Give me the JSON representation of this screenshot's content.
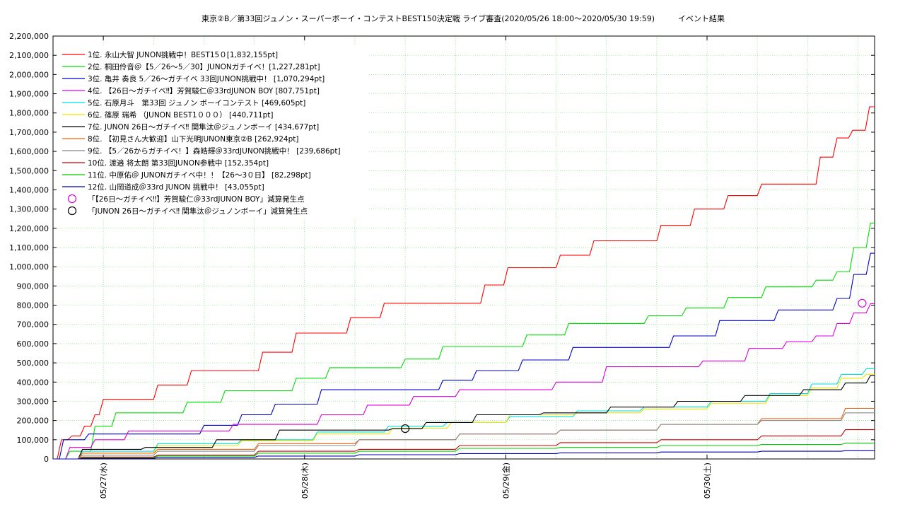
{
  "chart_data": {
    "type": "line",
    "title": "東京②B／第33回ジュノン・スーパーボーイ・コンテストBEST150決定戦 ライブ審査(2020/05/26 18:00〜2020/05/30 19:59)　　　イベント結果",
    "xlabel": "",
    "ylabel": "",
    "x_range": [
      "2020-05-26 18:00",
      "2020-05-30 19:59"
    ],
    "ylim": [
      0,
      2200000
    ],
    "y_ticks": [
      0,
      100000,
      200000,
      300000,
      400000,
      500000,
      600000,
      700000,
      800000,
      900000,
      1000000,
      1100000,
      1200000,
      1300000,
      1400000,
      1500000,
      1600000,
      1700000,
      1800000,
      1900000,
      2000000,
      2100000,
      2200000
    ],
    "y_tick_labels": [
      "0",
      "100,000",
      "200,000",
      "300,000",
      "400,000",
      "500,000",
      "600,000",
      "700,000",
      "800,000",
      "900,000",
      "1,000,000",
      "1,100,000",
      "1,200,000",
      "1,300,000",
      "1,400,000",
      "1,500,000",
      "1,600,000",
      "1,700,000",
      "1,800,000",
      "1,900,000",
      "2,000,000",
      "2,100,000",
      "2,200,000"
    ],
    "x_ticks": [
      "2020-05-27 00:00",
      "2020-05-28 00:00",
      "2020-05-29 00:00",
      "2020-05-30 00:00"
    ],
    "x_tick_labels": [
      "05/27(水)",
      "05/28(木)",
      "05/29(金)",
      "05/30(土)"
    ],
    "grid": true,
    "legend_position": "top-left",
    "series": [
      {
        "name": "1位. 永山大智 JUNON挑戦中！BEST15０[1,832,155pt]",
        "color": "#ff0000",
        "x": [
          "2020-05-26 18:00",
          "2020-05-26 19:00",
          "2020-05-26 20:30",
          "2020-05-26 22:00",
          "2020-05-26 23:00",
          "2020-05-27 00:00",
          "2020-05-27 04:00",
          "2020-05-27 08:00",
          "2020-05-27 12:00",
          "2020-05-27 16:00",
          "2020-05-27 21:00",
          "2020-05-28 00:00",
          "2020-05-28 03:00",
          "2020-05-28 07:00",
          "2020-05-28 11:00",
          "2020-05-28 15:00",
          "2020-05-28 19:00",
          "2020-05-28 23:00",
          "2020-05-29 00:30",
          "2020-05-29 04:00",
          "2020-05-29 08:00",
          "2020-05-29 12:00",
          "2020-05-29 16:00",
          "2020-05-29 20:00",
          "2020-05-30 00:00",
          "2020-05-30 04:00",
          "2020-05-30 08:00",
          "2020-05-30 12:00",
          "2020-05-30 14:00",
          "2020-05-30 16:00",
          "2020-05-30 17:45",
          "2020-05-30 19:59"
        ],
        "values": [
          0,
          100000,
          120000,
          170000,
          230000,
          310000,
          310000,
          385000,
          460000,
          460000,
          555000,
          655000,
          655000,
          735000,
          810000,
          810000,
          810000,
          905000,
          995000,
          995000,
          1060000,
          1135000,
          1135000,
          1215000,
          1300000,
          1370000,
          1430000,
          1430000,
          1570000,
          1670000,
          1710000,
          1832155
        ]
      },
      {
        "name": "2位. 桐田伶音＠【5／26〜5／30】JUNONガチイベ！[1,227,281pt]",
        "color": "#00dd00",
        "x": [
          "2020-05-26 18:00",
          "2020-05-26 21:00",
          "2020-05-27 00:00",
          "2020-05-27 02:00",
          "2020-05-27 07:00",
          "2020-05-27 12:00",
          "2020-05-27 16:00",
          "2020-05-27 21:00",
          "2020-05-28 00:00",
          "2020-05-28 05:00",
          "2020-05-28 09:00",
          "2020-05-28 14:00",
          "2020-05-28 18:00",
          "2020-05-28 23:00",
          "2020-05-29 05:00",
          "2020-05-29 09:00",
          "2020-05-29 14:00",
          "2020-05-29 19:00",
          "2020-05-29 23:00",
          "2020-05-30 05:00",
          "2020-05-30 08:00",
          "2020-05-30 11:00",
          "2020-05-30 14:00",
          "2020-05-30 16:00",
          "2020-05-30 18:00",
          "2020-05-30 19:59"
        ],
        "values": [
          0,
          40000,
          170000,
          240000,
          240000,
          295000,
          355000,
          355000,
          420000,
          475000,
          475000,
          520000,
          585000,
          585000,
          645000,
          705000,
          705000,
          745000,
          785000,
          840000,
          895000,
          895000,
          930000,
          975000,
          1100000,
          1227281
        ]
      },
      {
        "name": "3位. 亀井 奏良 5／26〜ガチイベ 33回JUNON挑戦中！ [1,070,294pt]",
        "color": "#0000cc",
        "x": [
          "2020-05-26 18:00",
          "2020-05-26 19:30",
          "2020-05-27 00:00",
          "2020-05-27 05:00",
          "2020-05-27 09:00",
          "2020-05-27 14:00",
          "2020-05-27 18:00",
          "2020-05-27 22:00",
          "2020-05-28 05:00",
          "2020-05-28 14:00",
          "2020-05-28 18:00",
          "2020-05-28 22:00",
          "2020-05-29 05:00",
          "2020-05-29 10:00",
          "2020-05-29 14:00",
          "2020-05-29 18:00",
          "2020-05-29 21:00",
          "2020-05-30 05:00",
          "2020-05-30 11:00",
          "2020-05-30 14:00",
          "2020-05-30 16:00",
          "2020-05-30 18:00",
          "2020-05-30 19:59"
        ],
        "values": [
          0,
          100000,
          130000,
          130000,
          130000,
          175000,
          230000,
          285000,
          360000,
          360000,
          410000,
          460000,
          515000,
          580000,
          580000,
          580000,
          640000,
          720000,
          775000,
          775000,
          835000,
          960000,
          1070294
        ]
      },
      {
        "name": "4位. 【26日〜ガチイベ‼︎】芳賀駿仁＠33rdJUNON BOY [807,751pt]",
        "color": "#dd00dd",
        "x": [
          "2020-05-26 18:00",
          "2020-05-26 21:00",
          "2020-05-27 00:00",
          "2020-05-27 05:00",
          "2020-05-27 12:00",
          "2020-05-27 18:00",
          "2020-05-27 23:00",
          "2020-05-28 04:00",
          "2020-05-28 10:00",
          "2020-05-28 15:00",
          "2020-05-28 21:00",
          "2020-05-29 02:00",
          "2020-05-29 09:00",
          "2020-05-29 14:00",
          "2020-05-29 20:00",
          "2020-05-30 02:00",
          "2020-05-30 07:00",
          "2020-05-30 11:00",
          "2020-05-30 14:00",
          "2020-05-30 16:00",
          "2020-05-30 18:00",
          "2020-05-30 19:59"
        ],
        "values": [
          0,
          60000,
          100000,
          145000,
          145000,
          180000,
          180000,
          230000,
          280000,
          325000,
          360000,
          360000,
          400000,
          480000,
          480000,
          510000,
          575000,
          610000,
          640000,
          705000,
          760000,
          807751
        ]
      },
      {
        "name": "5位. 石原月斗　第33回 ジュノン ボーイコンテスト [469,605pt]",
        "color": "#00dddd",
        "x": [
          "2020-05-26 18:00",
          "2020-05-27 00:00",
          "2020-05-27 12:00",
          "2020-05-27 20:00",
          "2020-05-28 06:00",
          "2020-05-28 13:00",
          "2020-05-28 20:00",
          "2020-05-29 04:00",
          "2020-05-29 12:00",
          "2020-05-29 20:00",
          "2020-05-30 04:00",
          "2020-05-30 10:00",
          "2020-05-30 14:00",
          "2020-05-30 17:00",
          "2020-05-30 19:59"
        ],
        "values": [
          0,
          40000,
          80000,
          100000,
          140000,
          170000,
          190000,
          220000,
          250000,
          270000,
          300000,
          340000,
          390000,
          440000,
          469605
        ]
      },
      {
        "name": "6位. 篠原 瑞希 （JUNON BEST1０００） [440,711pt]",
        "color": "#e8e800",
        "x": [
          "2020-05-26 18:00",
          "2020-05-27 00:00",
          "2020-05-27 12:00",
          "2020-05-27 20:00",
          "2020-05-28 06:00",
          "2020-05-28 14:00",
          "2020-05-28 20:00",
          "2020-05-29 04:00",
          "2020-05-29 12:00",
          "2020-05-29 20:00",
          "2020-05-30 04:00",
          "2020-05-30 10:00",
          "2020-05-30 14:00",
          "2020-05-30 17:00",
          "2020-05-30 19:59"
        ],
        "values": [
          0,
          30000,
          70000,
          95000,
          130000,
          160000,
          190000,
          230000,
          240000,
          260000,
          290000,
          330000,
          370000,
          420000,
          440711
        ]
      },
      {
        "name": "7位. JUNON 26日〜ガチイベ‼︎ 関隼汰＠ジュノンボーイ [434,677pt]",
        "color": "#000000",
        "x": [
          "2020-05-26 18:00",
          "2020-05-27 00:00",
          "2020-05-27 09:00",
          "2020-05-27 17:00",
          "2020-05-28 00:00",
          "2020-05-28 08:00",
          "2020-05-28 12:00",
          "2020-05-28 16:00",
          "2020-05-29 00:00",
          "2020-05-29 08:00",
          "2020-05-29 16:00",
          "2020-05-30 00:00",
          "2020-05-30 08:00",
          "2020-05-30 14:00",
          "2020-05-30 18:00",
          "2020-05-30 19:59"
        ],
        "values": [
          0,
          50000,
          60000,
          100000,
          150000,
          150000,
          158000,
          190000,
          230000,
          240000,
          270000,
          300000,
          330000,
          360000,
          395000,
          434677
        ]
      },
      {
        "name": "8位. 【初見さん大歓迎】山下光明JUNON東京②B [262,924pt]",
        "color": "#ee6611",
        "x": [
          "2020-05-26 18:00",
          "2020-05-27 00:00",
          "2020-05-27 12:00",
          "2020-05-28 00:00",
          "2020-05-28 12:00",
          "2020-05-29 00:00",
          "2020-05-29 12:00",
          "2020-05-30 00:00",
          "2020-05-30 12:00",
          "2020-05-30 19:59"
        ],
        "values": [
          0,
          30000,
          50000,
          80000,
          100000,
          130000,
          150000,
          180000,
          210000,
          262924
        ]
      },
      {
        "name": "9位. 【5／26からガチイベ！】森皓輝＠33rdJUNON挑戦中！ [239,686pt]",
        "color": "#888888",
        "x": [
          "2020-05-26 18:00",
          "2020-05-27 00:00",
          "2020-05-27 12:00",
          "2020-05-28 00:00",
          "2020-05-28 12:00",
          "2020-05-29 00:00",
          "2020-05-29 12:00",
          "2020-05-30 00:00",
          "2020-05-30 12:00",
          "2020-05-30 19:59"
        ],
        "values": [
          0,
          20000,
          40000,
          70000,
          100000,
          130000,
          150000,
          180000,
          200000,
          239686
        ]
      },
      {
        "name": "10位. 渡邉 将太朗 第33回JUNON参戦中 [152,354pt]",
        "color": "#cc0000",
        "x": [
          "2020-05-26 18:00",
          "2020-05-27 00:00",
          "2020-05-27 12:00",
          "2020-05-28 00:00",
          "2020-05-28 12:00",
          "2020-05-29 00:00",
          "2020-05-29 12:00",
          "2020-05-30 00:00",
          "2020-05-30 12:00",
          "2020-05-30 19:59"
        ],
        "values": [
          0,
          10000,
          20000,
          40000,
          50000,
          70000,
          85000,
          100000,
          120000,
          152354
        ]
      },
      {
        "name": "11位. 中原佑＠ JUNONガチイベ中！！【26〜3０日】 [82,298pt]",
        "color": "#00cc00",
        "x": [
          "2020-05-26 18:00",
          "2020-05-27 00:00",
          "2020-05-27 12:00",
          "2020-05-28 00:00",
          "2020-05-28 12:00",
          "2020-05-29 00:00",
          "2020-05-29 12:00",
          "2020-05-30 00:00",
          "2020-05-30 12:00",
          "2020-05-30 19:59"
        ],
        "values": [
          0,
          5000,
          15000,
          30000,
          40000,
          55000,
          60000,
          70000,
          75000,
          82298
        ]
      },
      {
        "name": "12位. 山岡道成＠33rd JUNON 挑戦中！ [43,055pt]",
        "color": "#0000aa",
        "x": [
          "2020-05-26 18:00",
          "2020-05-27 00:00",
          "2020-05-27 12:00",
          "2020-05-28 00:00",
          "2020-05-28 12:00",
          "2020-05-29 00:00",
          "2020-05-29 12:00",
          "2020-05-30 00:00",
          "2020-05-30 12:00",
          "2020-05-30 19:59"
        ],
        "values": [
          0,
          3000,
          8000,
          15000,
          22000,
          28000,
          32000,
          36000,
          40000,
          43055
        ]
      }
    ],
    "markers": [
      {
        "name": "「【26日〜ガチイベ‼︎】芳賀駿仁＠33rdJUNON BOY」減算発生点",
        "color": "#dd00dd",
        "x": "2020-05-30 18:30",
        "y": 810000
      },
      {
        "name": "「JUNON 26日〜ガチイベ‼︎ 関隼汰＠ジュノンボーイ」減算発生点",
        "color": "#000000",
        "x": "2020-05-28 12:00",
        "y": 158000
      }
    ]
  }
}
